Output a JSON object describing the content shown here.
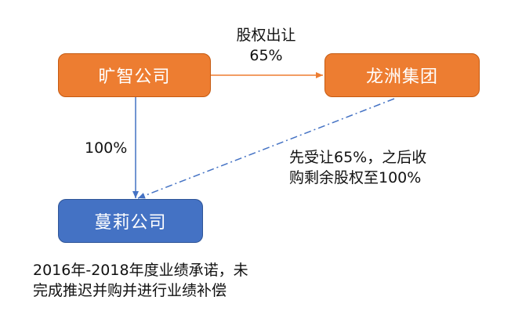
{
  "nodes": {
    "kuangzhi": {
      "label": "旷智公司",
      "color": "#ED7D31"
    },
    "longzhou": {
      "label": "龙洲集团",
      "color": "#ED7D31"
    },
    "manli": {
      "label": "蔓莉公司",
      "color": "#4472C4"
    }
  },
  "edges": {
    "transfer": {
      "line1": "股权出让",
      "line2": "65%",
      "color": "#ED7D31"
    },
    "ownership": {
      "label": "100%",
      "color": "#4472C4"
    },
    "acquisition": {
      "line1": "先受让65%，之后收",
      "line2": "购剩余股权至100%",
      "style": "dash-dot",
      "color": "#4472C4"
    }
  },
  "note": {
    "line1": "2016年-2018年度业绩承诺，未",
    "line2": "完成推迟并购并进行业绩补偿"
  }
}
